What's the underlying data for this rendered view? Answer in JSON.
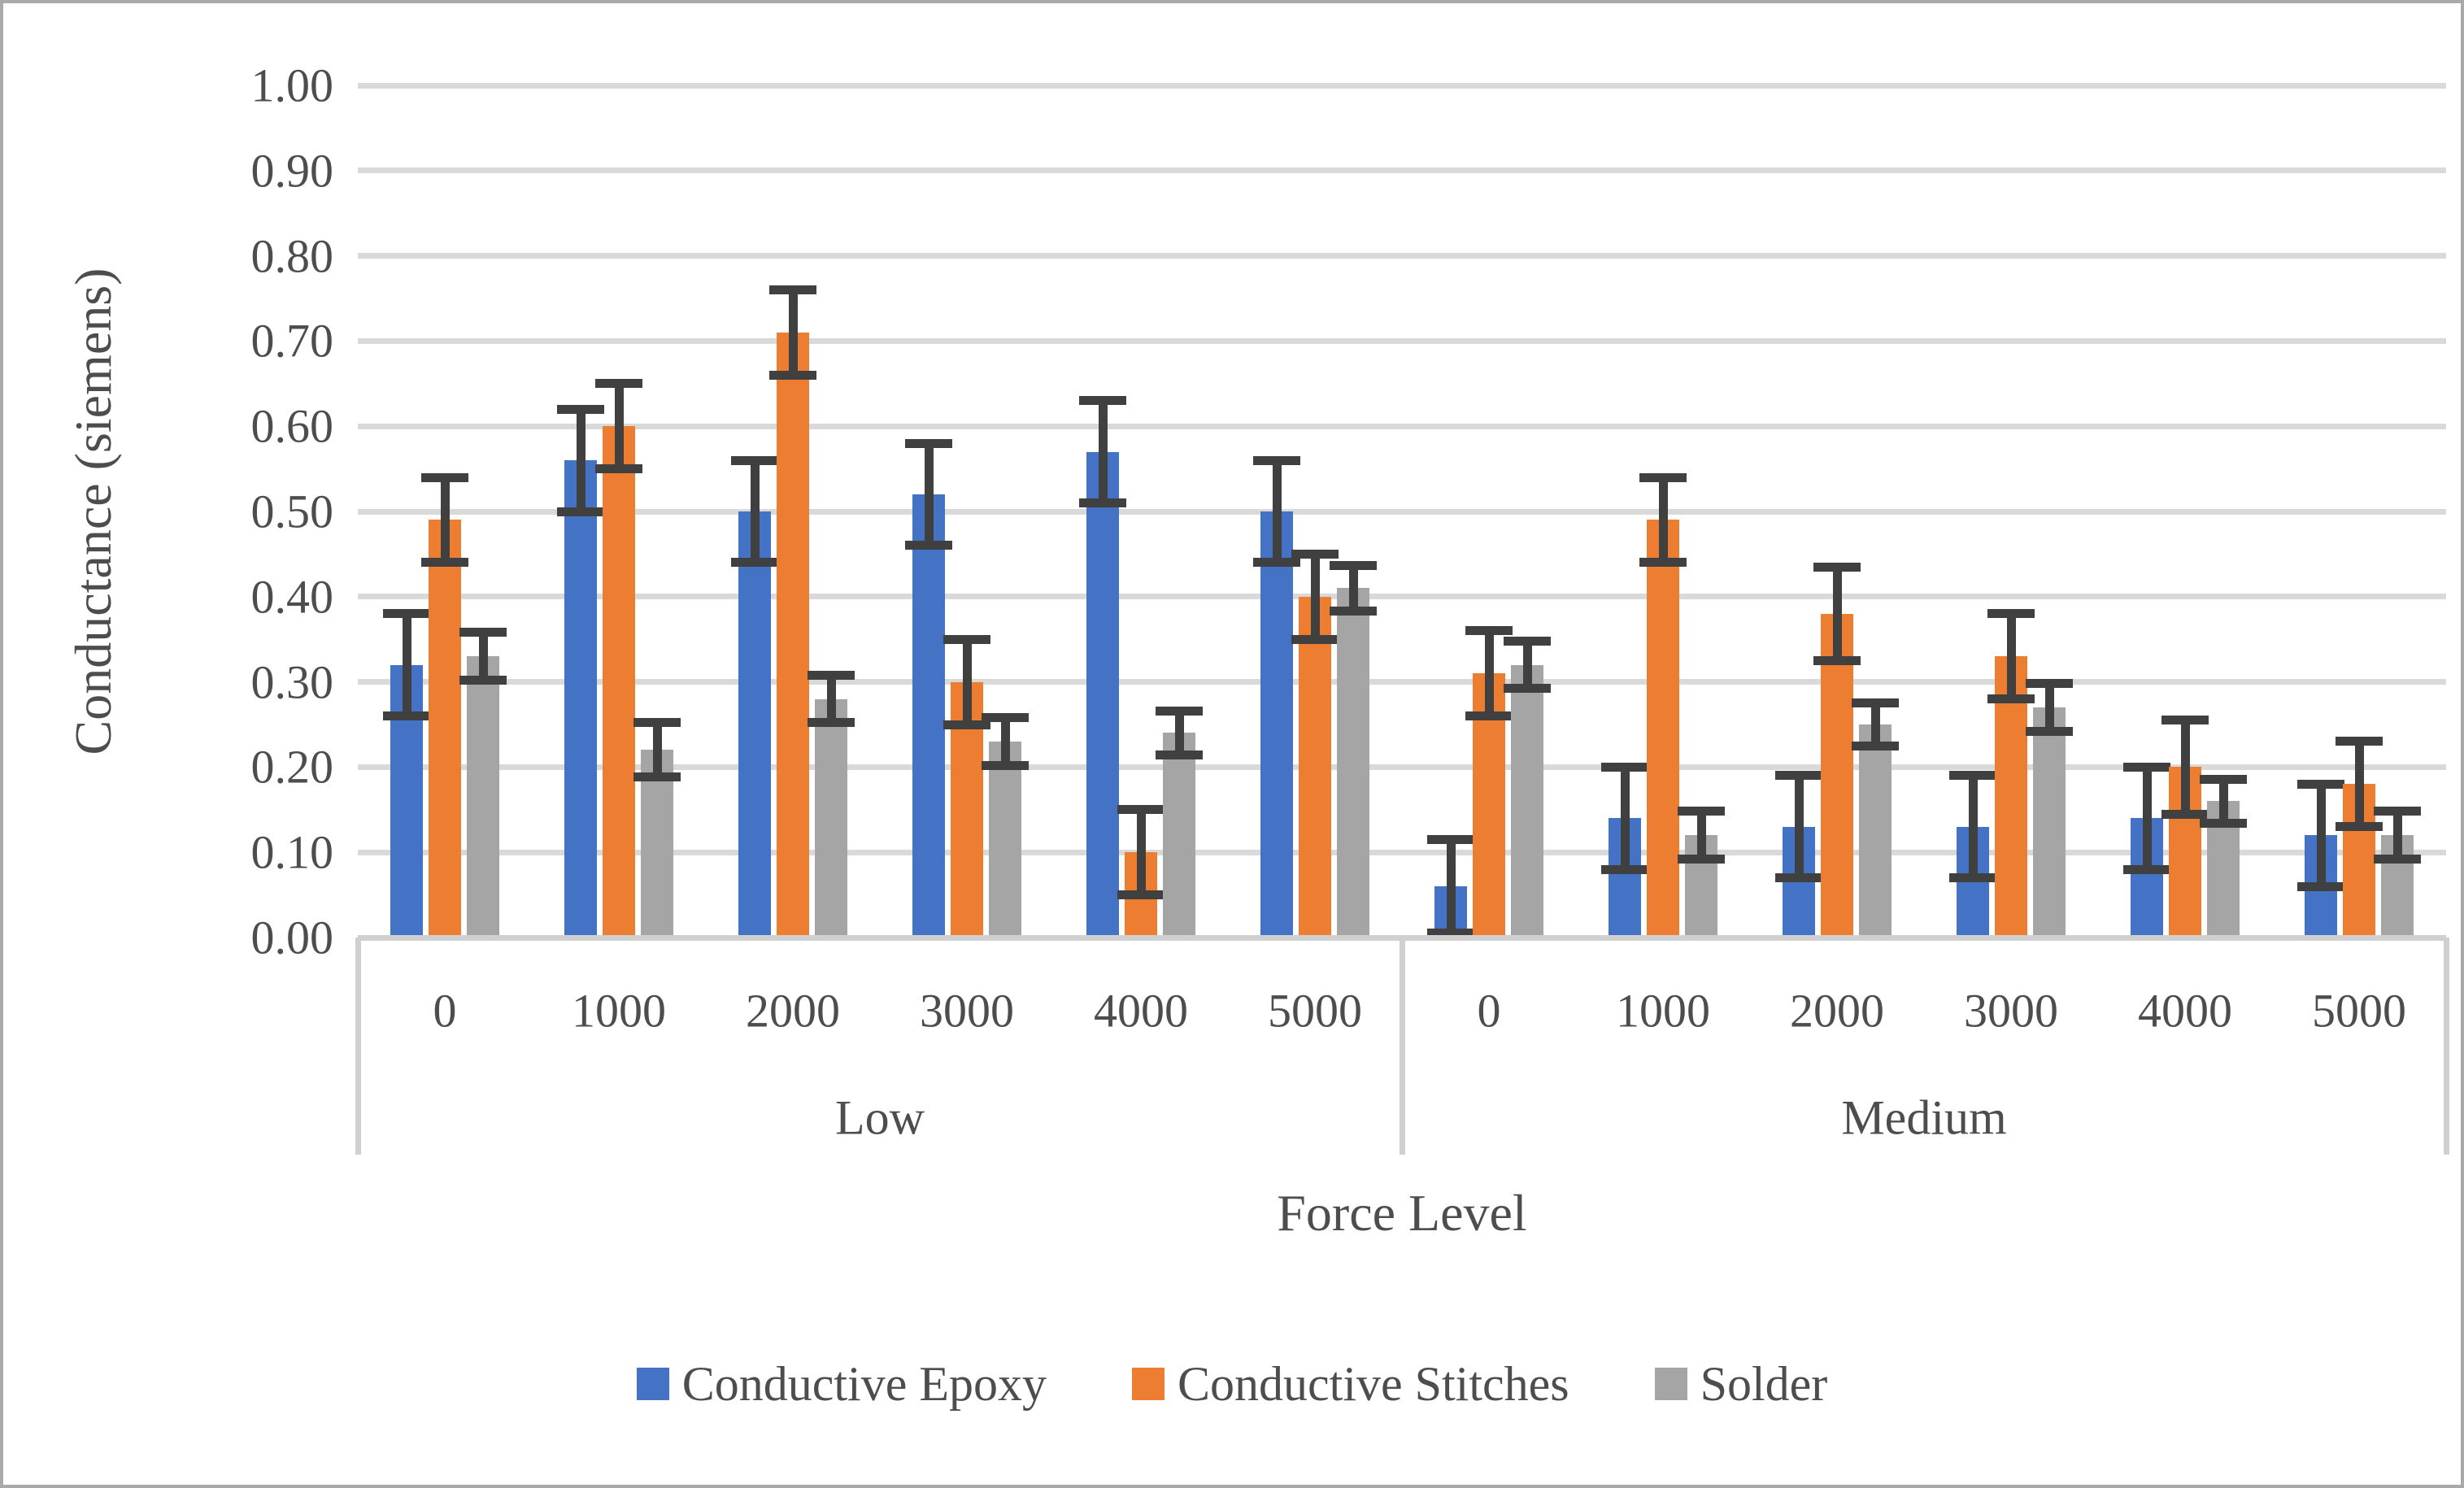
{
  "chart_data": {
    "type": "bar",
    "ylabel": "Conductance (siemens)",
    "xlabel": "Force Level",
    "ylim": [
      0,
      1.0
    ],
    "ytick_step": 0.1,
    "ytick_labels": [
      "0.00",
      "0.10",
      "0.20",
      "0.30",
      "0.40",
      "0.50",
      "0.60",
      "0.70",
      "0.80",
      "0.90",
      "1.00"
    ],
    "grid": true,
    "legend_position": "bottom",
    "groups": [
      "Low",
      "Medium"
    ],
    "categories": [
      "0",
      "1000",
      "2000",
      "3000",
      "4000",
      "5000"
    ],
    "error_bar_color": "#404040",
    "series": [
      {
        "name": "Conductive Epoxy",
        "color": "#4472c4",
        "low": [
          0.32,
          0.56,
          0.5,
          0.52,
          0.57,
          0.5
        ],
        "low_errors": [
          0.06,
          0.06,
          0.06,
          0.06,
          0.06,
          0.06
        ],
        "medium": [
          0.06,
          0.14,
          0.13,
          0.13,
          0.14,
          0.12
        ],
        "medium_errors": [
          0.055,
          0.06,
          0.06,
          0.06,
          0.06,
          0.06
        ]
      },
      {
        "name": "Conductive Stitches",
        "color": "#ed7d31",
        "low": [
          0.49,
          0.6,
          0.71,
          0.3,
          0.1,
          0.4
        ],
        "low_errors": [
          0.05,
          0.05,
          0.05,
          0.05,
          0.05,
          0.05
        ],
        "medium": [
          0.31,
          0.49,
          0.38,
          0.33,
          0.2,
          0.18
        ],
        "medium_errors": [
          0.05,
          0.05,
          0.055,
          0.05,
          0.055,
          0.05
        ]
      },
      {
        "name": "Solder",
        "color": "#a5a5a5",
        "low": [
          0.33,
          0.22,
          0.28,
          0.23,
          0.24,
          0.41
        ],
        "low_errors": [
          0.028,
          0.032,
          0.028,
          0.028,
          0.026,
          0.027
        ],
        "medium": [
          0.32,
          0.12,
          0.25,
          0.27,
          0.16,
          0.12
        ],
        "medium_errors": [
          0.028,
          0.028,
          0.025,
          0.028,
          0.026,
          0.028
        ]
      }
    ]
  }
}
